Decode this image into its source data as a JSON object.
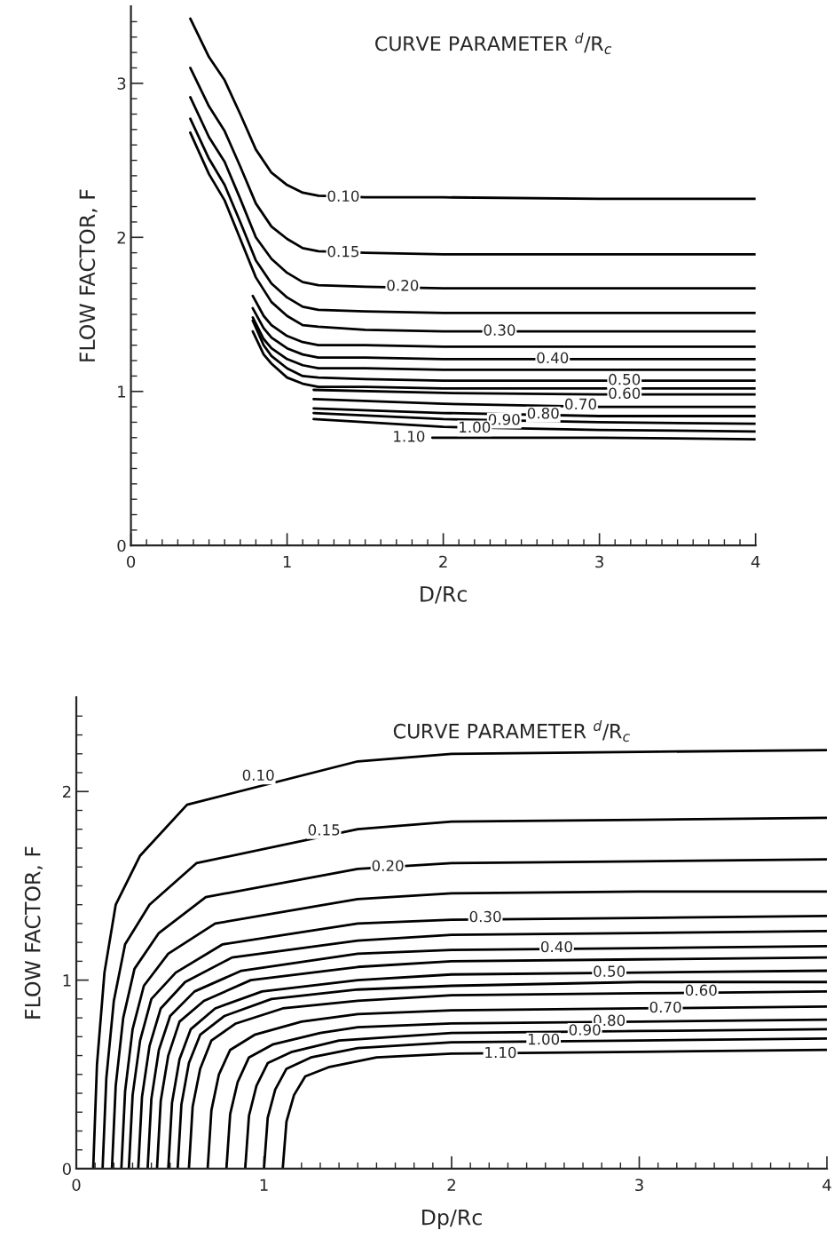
{
  "chart_data": [
    {
      "type": "line",
      "xlabel": "D/Rc",
      "ylabel": "FLOW FACTOR, F",
      "xlim": [
        0,
        4
      ],
      "ylim": [
        0,
        3.5
      ],
      "xticks": [
        0,
        {
          "value": 0.1,
          "label": null
        },
        {
          "value": 0.2,
          "label": null
        },
        {
          "value": 0.3,
          "label": null
        },
        {
          "value": 0.4,
          "label": null
        },
        {
          "value": 0.5,
          "label": null
        },
        {
          "value": 0.6,
          "label": null
        },
        {
          "value": 0.7,
          "label": null
        },
        {
          "value": 0.8,
          "label": null
        },
        {
          "value": 0.9,
          "label": null
        },
        1,
        {
          "value": 1.1,
          "label": null
        },
        {
          "value": 1.2,
          "label": null
        },
        {
          "value": 1.3,
          "label": null
        },
        {
          "value": 1.4,
          "label": null
        },
        {
          "value": 1.5,
          "label": null
        },
        {
          "value": 1.6,
          "label": null
        },
        {
          "value": 1.7,
          "label": null
        },
        {
          "value": 1.8,
          "label": null
        },
        {
          "value": 1.9,
          "label": null
        },
        2,
        {
          "value": 2.1,
          "label": null
        },
        {
          "value": 2.2,
          "label": null
        },
        {
          "value": 2.3,
          "label": null
        },
        {
          "value": 2.4,
          "label": null
        },
        {
          "value": 2.5,
          "label": null
        },
        {
          "value": 2.6,
          "label": null
        },
        {
          "value": 2.7,
          "label": null
        },
        {
          "value": 2.8,
          "label": null
        },
        {
          "value": 2.9,
          "label": null
        },
        3,
        {
          "value": 3.1,
          "label": null
        },
        {
          "value": 3.2,
          "label": null
        },
        {
          "value": 3.3,
          "label": null
        },
        {
          "value": 3.4,
          "label": null
        },
        {
          "value": 3.5,
          "label": null
        },
        {
          "value": 3.6,
          "label": null
        },
        {
          "value": 3.7,
          "label": null
        },
        {
          "value": 3.8,
          "label": null
        },
        {
          "value": 3.9,
          "label": null
        },
        4
      ],
      "yticks": [
        0,
        {
          "value": 0.1,
          "label": null
        },
        {
          "value": 0.2,
          "label": null
        },
        {
          "value": 0.3,
          "label": null
        },
        {
          "value": 0.4,
          "label": null
        },
        {
          "value": 0.5,
          "label": null
        },
        {
          "value": 0.6,
          "label": null
        },
        {
          "value": 0.7,
          "label": null
        },
        {
          "value": 0.8,
          "label": null
        },
        {
          "value": 0.9,
          "label": null
        },
        1,
        {
          "value": 1.1,
          "label": null
        },
        {
          "value": 1.2,
          "label": null
        },
        {
          "value": 1.3,
          "label": null
        },
        {
          "value": 1.4,
          "label": null
        },
        {
          "value": 1.5,
          "label": null
        },
        {
          "value": 1.6,
          "label": null
        },
        {
          "value": 1.7,
          "label": null
        },
        {
          "value": 1.8,
          "label": null
        },
        {
          "value": 1.9,
          "label": null
        },
        2,
        {
          "value": 2.1,
          "label": null
        },
        {
          "value": 2.2,
          "label": null
        },
        {
          "value": 2.3,
          "label": null
        },
        {
          "value": 2.4,
          "label": null
        },
        {
          "value": 2.5,
          "label": null
        },
        {
          "value": 2.6,
          "label": null
        },
        {
          "value": 2.7,
          "label": null
        },
        {
          "value": 2.8,
          "label": null
        },
        {
          "value": 2.9,
          "label": null
        },
        3,
        {
          "value": 3.1,
          "label": null
        },
        {
          "value": 3.2,
          "label": null
        },
        {
          "value": 3.3,
          "label": null
        },
        {
          "value": 3.4,
          "label": null
        }
      ],
      "annotations": [
        "CURVE PARAMETER $^{d}$/R$_{c}$",
        {
          "text": "0.10",
          "x": 1.36,
          "y": 2.26
        },
        {
          "text": "0.15",
          "x": 1.36,
          "y": 1.9
        },
        {
          "text": "0.20",
          "x": 1.74,
          "y": 1.68
        },
        {
          "text": "0.30",
          "x": 2.36,
          "y": 1.39
        },
        {
          "text": "0.40",
          "x": 2.7,
          "y": 1.21
        },
        {
          "text": "0.50",
          "x": 3.16,
          "y": 1.07
        },
        {
          "text": "0.60",
          "x": 3.16,
          "y": 0.98
        },
        {
          "text": "0.70",
          "x": 2.88,
          "y": 0.91
        },
        {
          "text": "0.80",
          "x": 2.64,
          "y": 0.85
        },
        {
          "text": "0.90",
          "x": 2.39,
          "y": 0.81
        },
        {
          "text": "1.00",
          "x": 2.2,
          "y": 0.76
        },
        {
          "text": "1.10",
          "x": 1.78,
          "y": 0.7
        }
      ],
      "series": [
        {
          "color": "#000000",
          "x": [
            0.38,
            0.5,
            0.6,
            0.7,
            0.8,
            0.9,
            1.0,
            1.1,
            1.2,
            1.5,
            2,
            3,
            4
          ],
          "values": [
            3.42,
            3.17,
            3.02,
            2.8,
            2.57,
            2.42,
            2.34,
            2.29,
            2.27,
            2.26,
            2.26,
            2.25,
            2.25
          ]
        },
        {
          "color": "#000000",
          "x": [
            0.38,
            0.5,
            0.6,
            0.7,
            0.8,
            0.9,
            1.0,
            1.1,
            1.2,
            1.5,
            2,
            3,
            4
          ],
          "values": [
            3.1,
            2.85,
            2.69,
            2.46,
            2.22,
            2.07,
            1.99,
            1.93,
            1.91,
            1.9,
            1.89,
            1.89,
            1.89
          ]
        },
        {
          "color": "#000000",
          "x": [
            0.38,
            0.5,
            0.6,
            0.7,
            0.8,
            0.9,
            1.0,
            1.1,
            1.2,
            1.5,
            2,
            3,
            4
          ],
          "values": [
            2.91,
            2.65,
            2.49,
            2.25,
            2.0,
            1.86,
            1.77,
            1.71,
            1.69,
            1.68,
            1.67,
            1.67,
            1.67
          ]
        },
        {
          "color": "#000000",
          "x": [
            0.38,
            0.5,
            0.6,
            0.7,
            0.8,
            0.9,
            1.0,
            1.1,
            1.2,
            1.5,
            2,
            3,
            4
          ],
          "values": [
            2.77,
            2.51,
            2.34,
            2.1,
            1.85,
            1.7,
            1.61,
            1.55,
            1.53,
            1.52,
            1.51,
            1.51,
            1.51
          ]
        },
        {
          "color": "#000000",
          "x": [
            0.38,
            0.5,
            0.6,
            0.7,
            0.8,
            0.9,
            1.0,
            1.1,
            1.2,
            1.5,
            2,
            3,
            4
          ],
          "values": [
            2.68,
            2.41,
            2.24,
            1.99,
            1.74,
            1.58,
            1.49,
            1.43,
            1.42,
            1.4,
            1.39,
            1.39,
            1.39
          ]
        },
        {
          "color": "#000000",
          "x": [
            0.78,
            0.85,
            0.9,
            1.0,
            1.1,
            1.2,
            1.5,
            2,
            3,
            4
          ],
          "values": [
            1.62,
            1.49,
            1.43,
            1.36,
            1.32,
            1.3,
            1.3,
            1.29,
            1.29,
            1.29
          ]
        },
        {
          "color": "#000000",
          "x": [
            0.78,
            0.85,
            0.9,
            1.0,
            1.1,
            1.2,
            1.5,
            2,
            3,
            4
          ],
          "values": [
            1.54,
            1.41,
            1.35,
            1.28,
            1.24,
            1.22,
            1.22,
            1.21,
            1.21,
            1.21
          ]
        },
        {
          "color": "#000000",
          "x": [
            0.78,
            0.85,
            0.9,
            1.0,
            1.1,
            1.2,
            1.5,
            2,
            3,
            4
          ],
          "values": [
            1.48,
            1.34,
            1.28,
            1.21,
            1.17,
            1.15,
            1.15,
            1.14,
            1.14,
            1.14
          ]
        },
        {
          "color": "#000000",
          "x": [
            0.78,
            0.85,
            0.9,
            1.0,
            1.1,
            1.2,
            1.5,
            2,
            3,
            4
          ],
          "values": [
            1.46,
            1.3,
            1.23,
            1.15,
            1.1,
            1.09,
            1.08,
            1.07,
            1.07,
            1.07
          ]
        },
        {
          "color": "#000000",
          "x": [
            0.78,
            0.85,
            0.9,
            1.0,
            1.1,
            1.2,
            1.5,
            2,
            3,
            4
          ],
          "values": [
            1.39,
            1.24,
            1.18,
            1.09,
            1.05,
            1.03,
            1.03,
            1.02,
            1.02,
            1.02
          ]
        },
        {
          "color": "#000000",
          "x": [
            1.17,
            2,
            3,
            4
          ],
          "values": [
            1.01,
            0.99,
            0.98,
            0.98
          ]
        },
        {
          "color": "#000000",
          "x": [
            1.17,
            2,
            3,
            4
          ],
          "values": [
            0.95,
            0.92,
            0.9,
            0.9
          ]
        },
        {
          "color": "#000000",
          "x": [
            1.17,
            2,
            3,
            4
          ],
          "values": [
            0.89,
            0.86,
            0.84,
            0.84
          ]
        },
        {
          "color": "#000000",
          "x": [
            1.17,
            2,
            3,
            4
          ],
          "values": [
            0.86,
            0.82,
            0.8,
            0.79
          ]
        },
        {
          "color": "#000000",
          "x": [
            1.17,
            2,
            3,
            4
          ],
          "values": [
            0.82,
            0.77,
            0.75,
            0.74
          ]
        },
        {
          "color": "#000000",
          "x": [
            1.93,
            3,
            4
          ],
          "values": [
            0.7,
            0.7,
            0.69
          ]
        }
      ]
    },
    {
      "type": "line",
      "xlabel": "Dp/Rc",
      "ylabel": "FLOW FACTOR, F",
      "xlim": [
        0,
        4
      ],
      "ylim": [
        0,
        2.5
      ],
      "xticks": [
        0,
        {
          "value": 0.1,
          "label": null
        },
        {
          "value": 0.2,
          "label": null
        },
        {
          "value": 0.3,
          "label": null
        },
        {
          "value": 0.4,
          "label": null
        },
        {
          "value": 0.5,
          "label": null
        },
        {
          "value": 0.6,
          "label": null
        },
        {
          "value": 0.7,
          "label": null
        },
        {
          "value": 0.8,
          "label": null
        },
        {
          "value": 0.9,
          "label": null
        },
        1,
        {
          "value": 1.1,
          "label": null
        },
        {
          "value": 1.2,
          "label": null
        },
        {
          "value": 1.3,
          "label": null
        },
        {
          "value": 1.4,
          "label": null
        },
        {
          "value": 1.5,
          "label": null
        },
        {
          "value": 1.6,
          "label": null
        },
        {
          "value": 1.7,
          "label": null
        },
        {
          "value": 1.8,
          "label": null
        },
        {
          "value": 1.9,
          "label": null
        },
        2,
        {
          "value": 2.1,
          "label": null
        },
        {
          "value": 2.2,
          "label": null
        },
        {
          "value": 2.3,
          "label": null
        },
        {
          "value": 2.4,
          "label": null
        },
        {
          "value": 2.5,
          "label": null
        },
        {
          "value": 2.6,
          "label": null
        },
        {
          "value": 2.7,
          "label": null
        },
        {
          "value": 2.8,
          "label": null
        },
        {
          "value": 2.9,
          "label": null
        },
        3,
        {
          "value": 3.1,
          "label": null
        },
        {
          "value": 3.2,
          "label": null
        },
        {
          "value": 3.3,
          "label": null
        },
        {
          "value": 3.4,
          "label": null
        },
        {
          "value": 3.5,
          "label": null
        },
        {
          "value": 3.6,
          "label": null
        },
        {
          "value": 3.7,
          "label": null
        },
        {
          "value": 3.8,
          "label": null
        },
        {
          "value": 3.9,
          "label": null
        },
        4
      ],
      "yticks": [
        0,
        {
          "value": 0.1,
          "label": null
        },
        {
          "value": 0.2,
          "label": null
        },
        {
          "value": 0.3,
          "label": null
        },
        {
          "value": 0.4,
          "label": null
        },
        {
          "value": 0.5,
          "label": null
        },
        {
          "value": 0.6,
          "label": null
        },
        {
          "value": 0.7,
          "label": null
        },
        {
          "value": 0.8,
          "label": null
        },
        {
          "value": 0.9,
          "label": null
        },
        1,
        {
          "value": 1.1,
          "label": null
        },
        {
          "value": 1.2,
          "label": null
        },
        {
          "value": 1.3,
          "label": null
        },
        {
          "value": 1.4,
          "label": null
        },
        {
          "value": 1.5,
          "label": null
        },
        {
          "value": 1.6,
          "label": null
        },
        {
          "value": 1.7,
          "label": null
        },
        {
          "value": 1.8,
          "label": null
        },
        {
          "value": 1.9,
          "label": null
        },
        2,
        {
          "value": 2.1,
          "label": null
        },
        {
          "value": 2.2,
          "label": null
        },
        {
          "value": 2.3,
          "label": null
        },
        {
          "value": 2.4,
          "label": null
        }
      ],
      "annotations": [
        "CURVE PARAMETER $^{d}$/R$_{c}$",
        {
          "text": "0.10",
          "x": 0.97,
          "y": 2.08
        },
        {
          "text": "0.15",
          "x": 1.32,
          "y": 1.79
        },
        {
          "text": "0.20",
          "x": 1.66,
          "y": 1.6
        },
        {
          "text": "0.30",
          "x": 2.18,
          "y": 1.33
        },
        {
          "text": "0.40",
          "x": 2.56,
          "y": 1.17
        },
        {
          "text": "0.50",
          "x": 2.84,
          "y": 1.04
        },
        {
          "text": "0.60",
          "x": 3.33,
          "y": 0.94
        },
        {
          "text": "0.70",
          "x": 3.14,
          "y": 0.85
        },
        {
          "text": "0.80",
          "x": 2.84,
          "y": 0.78
        },
        {
          "text": "0.90",
          "x": 2.71,
          "y": 0.73
        },
        {
          "text": "1.00",
          "x": 2.49,
          "y": 0.68
        },
        {
          "text": "1.10",
          "x": 2.26,
          "y": 0.61
        }
      ],
      "series": [
        {
          "color": "#000000",
          "x": [
            0.09,
            0.11,
            0.15,
            0.21,
            0.34,
            0.59,
            1.5,
            2,
            3,
            4
          ],
          "values": [
            0,
            0.55,
            1.04,
            1.4,
            1.66,
            1.93,
            2.16,
            2.2,
            2.21,
            2.22
          ]
        },
        {
          "color": "#000000",
          "x": [
            0.14,
            0.16,
            0.2,
            0.26,
            0.39,
            0.64,
            1.5,
            2,
            3,
            4
          ],
          "values": [
            0,
            0.48,
            0.89,
            1.19,
            1.4,
            1.62,
            1.8,
            1.84,
            1.85,
            1.86
          ]
        },
        {
          "color": "#000000",
          "x": [
            0.19,
            0.21,
            0.25,
            0.31,
            0.44,
            0.69,
            1.5,
            2,
            3,
            4
          ],
          "values": [
            0,
            0.44,
            0.8,
            1.06,
            1.25,
            1.44,
            1.59,
            1.62,
            1.63,
            1.64
          ]
        },
        {
          "color": "#000000",
          "x": [
            0.24,
            0.26,
            0.3,
            0.36,
            0.49,
            0.74,
            1.5,
            2,
            3,
            4
          ],
          "values": [
            0,
            0.41,
            0.74,
            0.97,
            1.14,
            1.3,
            1.43,
            1.46,
            1.47,
            1.47
          ]
        },
        {
          "color": "#000000",
          "x": [
            0.28,
            0.3,
            0.34,
            0.4,
            0.53,
            0.78,
            1.5,
            2,
            3,
            4
          ],
          "values": [
            0,
            0.39,
            0.68,
            0.9,
            1.04,
            1.19,
            1.3,
            1.32,
            1.33,
            1.34
          ]
        },
        {
          "color": "#000000",
          "x": [
            0.33,
            0.35,
            0.39,
            0.45,
            0.58,
            0.83,
            1.5,
            2,
            3,
            4
          ],
          "values": [
            0,
            0.38,
            0.65,
            0.85,
            0.99,
            1.12,
            1.21,
            1.24,
            1.25,
            1.26
          ]
        },
        {
          "color": "#000000",
          "x": [
            0.38,
            0.4,
            0.44,
            0.5,
            0.63,
            0.88,
            1.5,
            2,
            3,
            4
          ],
          "values": [
            0,
            0.37,
            0.63,
            0.81,
            0.94,
            1.05,
            1.14,
            1.16,
            1.17,
            1.18
          ]
        },
        {
          "color": "#000000",
          "x": [
            0.43,
            0.45,
            0.49,
            0.55,
            0.68,
            0.93,
            1.5,
            2,
            3,
            4
          ],
          "values": [
            0,
            0.36,
            0.6,
            0.78,
            0.89,
            1.0,
            1.07,
            1.1,
            1.11,
            1.12
          ]
        },
        {
          "color": "#000000",
          "x": [
            0.49,
            0.51,
            0.55,
            0.61,
            0.74,
            0.99,
            1.5,
            2,
            3,
            4
          ],
          "values": [
            0,
            0.35,
            0.58,
            0.74,
            0.85,
            0.94,
            1.0,
            1.03,
            1.04,
            1.05
          ]
        },
        {
          "color": "#000000",
          "x": [
            0.54,
            0.56,
            0.6,
            0.66,
            0.79,
            1.04,
            1.5,
            2,
            3,
            4
          ],
          "values": [
            0,
            0.34,
            0.56,
            0.71,
            0.81,
            0.9,
            0.95,
            0.97,
            0.99,
            0.99
          ]
        },
        {
          "color": "#000000",
          "x": [
            0.6,
            0.62,
            0.66,
            0.72,
            0.85,
            1.1,
            1.5,
            2,
            3,
            4
          ],
          "values": [
            0,
            0.33,
            0.53,
            0.68,
            0.77,
            0.85,
            0.89,
            0.92,
            0.93,
            0.94
          ]
        },
        {
          "color": "#000000",
          "x": [
            0.7,
            0.72,
            0.76,
            0.82,
            0.95,
            1.2,
            1.5,
            2,
            3,
            4
          ],
          "values": [
            0,
            0.31,
            0.5,
            0.63,
            0.71,
            0.78,
            0.82,
            0.84,
            0.85,
            0.86
          ]
        },
        {
          "color": "#000000",
          "x": [
            0.8,
            0.82,
            0.86,
            0.92,
            1.05,
            1.3,
            1.5,
            2,
            3,
            4
          ],
          "values": [
            0,
            0.29,
            0.46,
            0.59,
            0.66,
            0.72,
            0.75,
            0.77,
            0.78,
            0.79
          ]
        },
        {
          "color": "#000000",
          "x": [
            0.9,
            0.92,
            0.96,
            1.02,
            1.15,
            1.4,
            2,
            3,
            4
          ],
          "values": [
            0,
            0.28,
            0.44,
            0.56,
            0.62,
            0.68,
            0.72,
            0.73,
            0.74
          ]
        },
        {
          "color": "#000000",
          "x": [
            1.0,
            1.02,
            1.06,
            1.12,
            1.25,
            1.5,
            2,
            3,
            4
          ],
          "values": [
            0,
            0.27,
            0.42,
            0.53,
            0.59,
            0.64,
            0.67,
            0.68,
            0.69
          ]
        },
        {
          "color": "#000000",
          "x": [
            1.1,
            1.12,
            1.16,
            1.22,
            1.35,
            1.6,
            2,
            3,
            4
          ],
          "values": [
            0,
            0.25,
            0.39,
            0.49,
            0.54,
            0.59,
            0.61,
            0.62,
            0.63
          ]
        }
      ]
    }
  ]
}
